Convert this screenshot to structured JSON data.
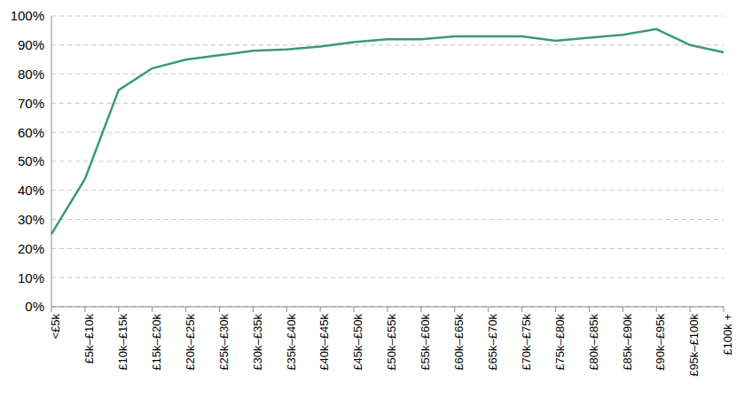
{
  "chart_data": {
    "type": "line",
    "categories": [
      "<£5k",
      "£5k–£10k",
      "£10k–£15k",
      "£15k–£20k",
      "£20k–£25k",
      "£25k–£30k",
      "£30k–£35k",
      "£35k–£40k",
      "£40k–£45k",
      "£45k–£50k",
      "£50k–£55k",
      "£55k–£60k",
      "£60k–£65k",
      "£65k–£70k",
      "£70k–£75k",
      "£75k–£80k",
      "£80k–£85k",
      "£85k–£90k",
      "£90k–£95k",
      "£95k–£100k",
      "£100k +"
    ],
    "values": [
      25,
      44,
      74.5,
      82,
      85,
      86.5,
      88,
      88.5,
      89.5,
      91,
      92,
      92,
      93,
      93,
      93,
      91.5,
      92.5,
      93.5,
      95.5,
      90,
      87.5
    ],
    "color": "#3a9a78",
    "ylim": [
      0,
      100
    ],
    "yticks": [
      {
        "value": 0,
        "label": "0%"
      },
      {
        "value": 10,
        "label": "10%"
      },
      {
        "value": 20,
        "label": "20%"
      },
      {
        "value": 30,
        "label": "30%"
      },
      {
        "value": 40,
        "label": "40%"
      },
      {
        "value": 50,
        "label": "50%"
      },
      {
        "value": 60,
        "label": "60%"
      },
      {
        "value": 70,
        "label": "70%"
      },
      {
        "value": 80,
        "label": "80%"
      },
      {
        "value": 90,
        "label": "90%"
      },
      {
        "value": 100,
        "label": "100%"
      }
    ],
    "grid": true
  }
}
